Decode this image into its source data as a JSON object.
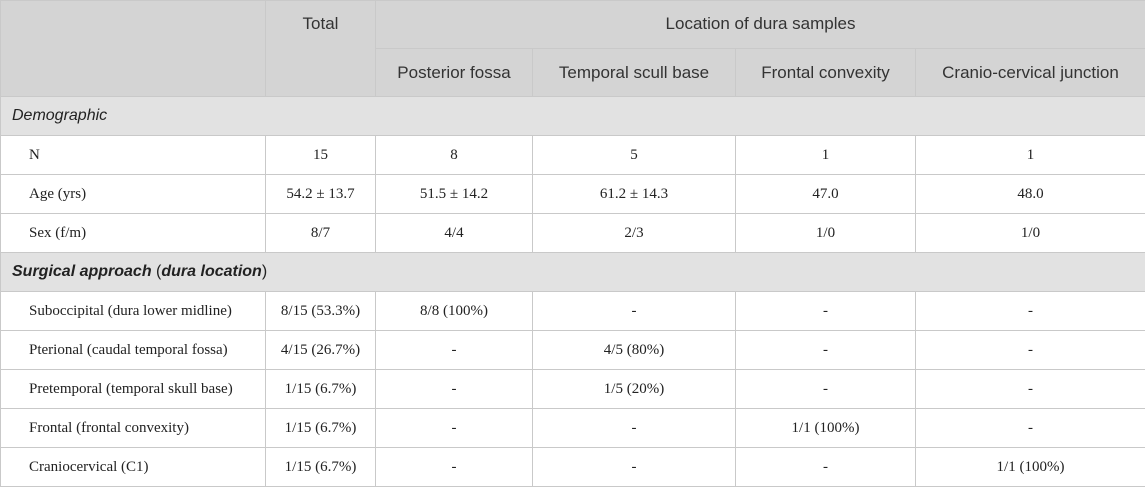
{
  "header": {
    "total": "Total",
    "location_group": "Location of dura samples",
    "locations": [
      "Posterior fossa",
      "Temporal scull base",
      "Frontal convexity",
      "Cranio-cervical junction"
    ]
  },
  "sections": [
    {
      "title": "Demographic",
      "rows": [
        {
          "label": "N",
          "cells": [
            "15",
            "8",
            "5",
            "1",
            "1"
          ]
        },
        {
          "label": "Age (yrs)",
          "cells": [
            "54.2 ± 13.7",
            "51.5 ± 14.2",
            "61.2 ± 14.3",
            "47.0",
            "48.0"
          ]
        },
        {
          "label": "Sex (f/m)",
          "cells": [
            "8/7",
            "4/4",
            "2/3",
            "1/0",
            "1/0"
          ]
        }
      ]
    },
    {
      "title_bold": "Surgical approach",
      "title_mid": " (",
      "title_paren": "dura location",
      "title_end": ")",
      "rows": [
        {
          "label": "Suboccipital (dura lower midline)",
          "cells": [
            "8/15 (53.3%)",
            "8/8 (100%)",
            "-",
            "-",
            "-"
          ]
        },
        {
          "label": "Pterional (caudal temporal fossa)",
          "cells": [
            "4/15 (26.7%)",
            "-",
            "4/5 (80%)",
            "-",
            "-"
          ]
        },
        {
          "label": "Pretemporal (temporal skull base)",
          "cells": [
            "1/15 (6.7%)",
            "-",
            "1/5 (20%)",
            "-",
            "-"
          ]
        },
        {
          "label": "Frontal (frontal convexity)",
          "cells": [
            "1/15 (6.7%)",
            "-",
            "-",
            "1/1 (100%)",
            "-"
          ]
        },
        {
          "label": "Craniocervical (C1)",
          "cells": [
            "1/15 (6.7%)",
            "-",
            "-",
            "-",
            "1/1 (100%)"
          ]
        }
      ]
    }
  ]
}
